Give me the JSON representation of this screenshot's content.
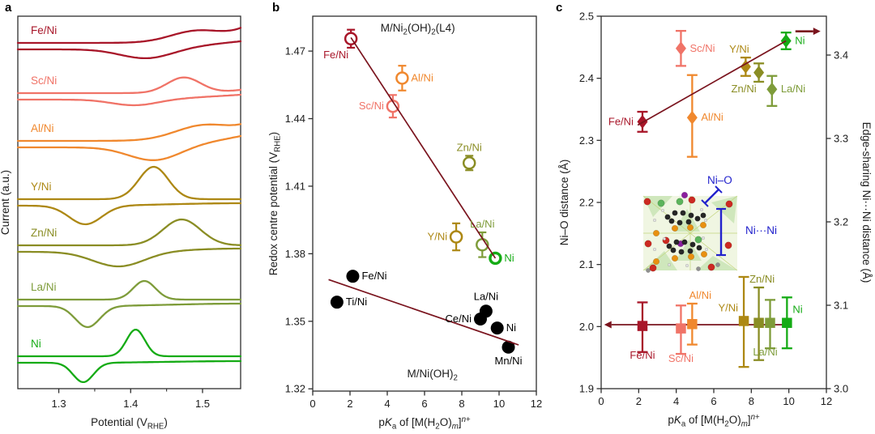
{
  "colors": {
    "fe": "#a81629",
    "sc": "#f07367",
    "al": "#f0882e",
    "yt": "#ad8814",
    "zn": "#8a8d24",
    "la": "#7e9c3a",
    "ni": "#15ab15",
    "black": "#000000",
    "trend": "#7a141e",
    "frame": "#2e2e2e",
    "annotation_blue": "#2222cc"
  },
  "chart_data": [
    {
      "id": "a",
      "panel_letter": "a",
      "type": "line",
      "xlabel": [
        {
          "t": "Potential (V"
        },
        {
          "t": "RHE",
          "s": "sub"
        },
        {
          "t": ")"
        }
      ],
      "ylabel": [
        {
          "t": "Current (a.u.)"
        }
      ],
      "xlim": [
        1.243,
        1.553
      ],
      "x_ticks": [
        1.3,
        1.4,
        1.5
      ],
      "x_minor_ticks": [
        1.35,
        1.45
      ],
      "x_tick_decimals": 1,
      "curves": [
        {
          "label": "Fe/Ni",
          "color": "fe",
          "peak_v": 1.49,
          "peak_amp": 13,
          "peak_w": 0.05,
          "edge_rise": 16,
          "dip_v": 1.421,
          "dip_amp": 11,
          "dip_w": 0.05,
          "lower_rise": 7,
          "lower_edge_rise": 3
        },
        {
          "label": "Sc/Ni",
          "color": "sc",
          "peak_v": 1.474,
          "peak_amp": 19,
          "peak_w": 0.033,
          "edge_rise": 4,
          "dip_v": 1.405,
          "dip_amp": 7,
          "dip_w": 0.045,
          "lower_rise": 4,
          "lower_edge_rise": 2
        },
        {
          "label": "Al/Ni",
          "color": "al",
          "peak_v": 1.5,
          "peak_amp": 17,
          "peak_w": 0.055,
          "edge_rise": 14,
          "dip_v": 1.432,
          "dip_amp": 16,
          "dip_w": 0.05,
          "lower_rise": 8,
          "lower_edge_rise": 6
        },
        {
          "label": "Y/Ni",
          "color": "yt",
          "peak_v": 1.432,
          "peak_amp": 40,
          "peak_w": 0.029,
          "edge_rise": 0,
          "dip_v": 1.337,
          "dip_amp": 23,
          "dip_w": 0.032,
          "lower_rise": 3,
          "lower_edge_rise": 0
        },
        {
          "label": "Zn/Ni",
          "color": "zn",
          "peak_v": 1.471,
          "peak_amp": 32,
          "peak_w": 0.037,
          "edge_rise": 0,
          "dip_v": 1.383,
          "dip_amp": 18,
          "dip_w": 0.05,
          "lower_rise": 4,
          "lower_edge_rise": 0
        },
        {
          "label": "La/Ni",
          "color": "la",
          "peak_v": 1.419,
          "peak_amp": 23,
          "peak_w": 0.022,
          "edge_rise": 0,
          "dip_v": 1.34,
          "dip_amp": 26,
          "dip_w": 0.024,
          "lower_rise": 3,
          "lower_edge_rise": 0
        },
        {
          "label": "Ni",
          "color": "ni",
          "peak_v": 1.407,
          "peak_amp": 33,
          "peak_w": 0.018,
          "edge_rise": 0,
          "dip_v": 1.334,
          "dip_amp": 24,
          "dip_w": 0.02,
          "lower_rise": 2,
          "lower_edge_rise": 0
        }
      ]
    },
    {
      "id": "b",
      "panel_letter": "b",
      "type": "scatter",
      "title": [
        {
          "t": "M/Ni"
        },
        {
          "t": "2",
          "s": "sub"
        },
        {
          "t": "(OH)"
        },
        {
          "t": "2",
          "s": "sub"
        },
        {
          "t": "(L4)"
        }
      ],
      "bottom_label": [
        {
          "t": "M/Ni(OH)"
        },
        {
          "t": "2",
          "s": "sub"
        }
      ],
      "xlabel": [
        {
          "t": "p"
        },
        {
          "t": "K",
          "s": "i"
        },
        {
          "t": "a",
          "s": "sub"
        },
        {
          "t": " of [M(H"
        },
        {
          "t": "2",
          "s": "sub"
        },
        {
          "t": "O)"
        },
        {
          "t": "m",
          "s": "isub"
        },
        {
          "t": "]"
        },
        {
          "t": "n",
          "s": "isup"
        },
        {
          "t": "+",
          "s": "sup"
        }
      ],
      "ylabel": [
        {
          "t": "Redox centre potential (V"
        },
        {
          "t": "RHE",
          "s": "sub"
        },
        {
          "t": ")"
        }
      ],
      "xlim": [
        0,
        12
      ],
      "x_ticks": [
        0,
        2,
        4,
        6,
        8,
        10,
        12
      ],
      "x_tick_decimals": 0,
      "ylim": [
        1.319,
        1.4855
      ],
      "y_ticks": [
        1.32,
        1.35,
        1.38,
        1.41,
        1.44,
        1.47
      ],
      "y_tick_decimals": 2,
      "series": [
        {
          "name": "M/Ni2(OH)2(L4)",
          "marker": "open-circle",
          "points": [
            {
              "label": "Fe/Ni",
              "x": 2.05,
              "y": 1.4755,
              "err": 0.004,
              "color": "fe",
              "label_pos": "below-left"
            },
            {
              "label": "Al/Ni",
              "x": 4.8,
              "y": 1.458,
              "err": 0.0055,
              "color": "al",
              "label_pos": "right"
            },
            {
              "label": "Sc/Ni",
              "x": 4.3,
              "y": 1.4455,
              "err": 0.005,
              "color": "sc",
              "label_pos": "left"
            },
            {
              "label": "Zn/Ni",
              "x": 8.4,
              "y": 1.4203,
              "err": 0.0032,
              "color": "zn",
              "label_pos": "above"
            },
            {
              "label": "Y/Ni",
              "x": 7.7,
              "y": 1.3875,
              "err": 0.006,
              "color": "yt",
              "label_pos": "left"
            },
            {
              "label": "La/Ni",
              "x": 9.1,
              "y": 1.384,
              "err": 0.0055,
              "color": "la",
              "label_pos": "above"
            },
            {
              "label": "Ni",
              "x": 9.8,
              "y": 1.378,
              "err": 0.0015,
              "color": "ni",
              "label_pos": "right",
              "bold": true
            }
          ]
        },
        {
          "name": "M/Ni(OH)2",
          "marker": "filled-circle",
          "points": [
            {
              "label": "Fe/Ni",
              "x": 2.15,
              "y": 1.37,
              "color": "black",
              "label_pos": "right"
            },
            {
              "label": "Ti/Ni",
              "x": 1.3,
              "y": 1.3585,
              "color": "black",
              "label_pos": "right"
            },
            {
              "label": "La/Ni",
              "x": 9.3,
              "y": 1.3545,
              "color": "black",
              "label_pos": "above"
            },
            {
              "label": "Ce/Ni",
              "x": 9.0,
              "y": 1.351,
              "color": "black",
              "label_pos": "left"
            },
            {
              "label": "Ni",
              "x": 9.9,
              "y": 1.347,
              "color": "black",
              "label_pos": "right"
            },
            {
              "label": "Mn/Ni",
              "x": 10.5,
              "y": 1.3385,
              "color": "black",
              "label_pos": "below"
            }
          ]
        }
      ],
      "trend_lines": [
        {
          "x1": 2.05,
          "y1": 1.476,
          "x2": 9.8,
          "y2": 1.378
        },
        {
          "x1": 0.85,
          "y1": 1.3685,
          "x2": 11.05,
          "y2": 1.3395
        }
      ]
    },
    {
      "id": "c",
      "panel_letter": "c",
      "type": "dual-axis-scatter",
      "xlabel": [
        {
          "t": "p"
        },
        {
          "t": "K",
          "s": "i"
        },
        {
          "t": "a",
          "s": "sub"
        },
        {
          "t": " of [M(H"
        },
        {
          "t": "2",
          "s": "sub"
        },
        {
          "t": "O)"
        },
        {
          "t": "m",
          "s": "isub"
        },
        {
          "t": "]"
        },
        {
          "t": "n",
          "s": "isup"
        },
        {
          "t": "+",
          "s": "sup"
        }
      ],
      "ylabel_left": [
        {
          "t": "Ni–O distance (Å)"
        }
      ],
      "ylabel_right": [
        {
          "t": "Edge-sharing Ni···Ni distance (Å)"
        }
      ],
      "xlim": [
        0,
        12
      ],
      "x_ticks": [
        0,
        2,
        4,
        6,
        8,
        10,
        12
      ],
      "x_tick_decimals": 0,
      "ylim_left": [
        1.9,
        2.5
      ],
      "y_ticks_left": [
        1.9,
        2.0,
        2.1,
        2.2,
        2.3,
        2.4,
        2.5
      ],
      "ylim_right": [
        3.0,
        3.4466
      ],
      "y_ticks_right": [
        3.0,
        3.1,
        3.2,
        3.3,
        3.4
      ],
      "y_tick_decimals": 1,
      "series": [
        {
          "name": "Edge-sharing Ni···Ni distance",
          "axis": "right",
          "marker": "diamond",
          "points": [
            {
              "label": "Fe/Ni",
              "x": 2.2,
              "y": 3.32,
              "err_up": 0.012,
              "err_dn": 0.012,
              "color": "fe",
              "label_pos": "left"
            },
            {
              "label": "Sc/Ni",
              "x": 4.25,
              "y": 3.408,
              "err_up": 0.021,
              "err_dn": 0.021,
              "color": "sc",
              "label_pos": "right"
            },
            {
              "label": "Al/Ni",
              "x": 4.85,
              "y": 3.325,
              "err_up": 0.051,
              "err_dn": 0.047,
              "color": "al",
              "label_pos": "right"
            },
            {
              "label": "Y/Ni",
              "x": 7.7,
              "y": 3.386,
              "err_up": 0.011,
              "err_dn": 0.011,
              "color": "yt",
              "label_pos": "above",
              "ldx": -8
            },
            {
              "label": "Zn/Ni",
              "x": 8.4,
              "y": 3.379,
              "err_up": 0.011,
              "err_dn": 0.011,
              "color": "zn",
              "label_pos": "below-left"
            },
            {
              "label": "La/Ni",
              "x": 9.1,
              "y": 3.359,
              "err_up": 0.016,
              "err_dn": 0.02,
              "color": "la",
              "label_pos": "right"
            },
            {
              "label": "Ni",
              "x": 9.85,
              "y": 3.417,
              "err_up": 0.01,
              "err_dn": 0.01,
              "color": "ni",
              "label_pos": "right"
            }
          ],
          "trend": {
            "x1": 1.95,
            "y1": 3.316,
            "x2": 9.85,
            "y2": 3.417
          },
          "arrow": {
            "x1": 10.35,
            "x2": 11.3,
            "y": 3.4285,
            "dir": "right"
          }
        },
        {
          "name": "Ni–O distance",
          "axis": "left",
          "marker": "square",
          "points": [
            {
              "label": "Fe/Ni",
              "x": 2.2,
              "y": 2.001,
              "err_up": 0.038,
              "err_dn": 0.042,
              "color": "fe",
              "label_pos": "below",
              "ldy": -5
            },
            {
              "label": "Sc/Ni",
              "x": 4.25,
              "y": 1.997,
              "err_up": 0.037,
              "err_dn": 0.041,
              "color": "sc",
              "label_pos": "below",
              "ldy": -3
            },
            {
              "label": "Al/Ni",
              "x": 4.85,
              "y": 2.004,
              "err_up": 0.033,
              "err_dn": 0.033,
              "color": "al",
              "label_pos": "above",
              "ldx": 10
            },
            {
              "label": "Y/Ni",
              "x": 7.6,
              "y": 2.009,
              "err_up": 0.071,
              "err_dn": 0.074,
              "color": "yt",
              "label_pos": "left",
              "ldx": 4,
              "ldy": -16
            },
            {
              "label": "Zn/Ni",
              "x": 8.4,
              "y": 2.006,
              "err_up": 0.057,
              "err_dn": 0.06,
              "color": "zn",
              "label_pos": "above",
              "ldx": 4
            },
            {
              "label": "La/Ni",
              "x": 9.0,
              "y": 2.006,
              "err_up": 0.037,
              "err_dn": 0.041,
              "color": "la",
              "label_pos": "below",
              "ldx": -6,
              "ldy": -4
            },
            {
              "label": "Ni",
              "x": 9.9,
              "y": 2.006,
              "err_up": 0.041,
              "err_dn": 0.041,
              "color": "ni",
              "label_pos": "right",
              "ldx": -4,
              "ldy": -16
            }
          ],
          "hline": {
            "y": 2.003,
            "x1": 0.55,
            "x2": 10.15,
            "arrow_dir": "left"
          }
        }
      ],
      "inset": {
        "label_ni_o": "Ni–O",
        "label_ni_ni": "Ni···Ni"
      }
    }
  ]
}
